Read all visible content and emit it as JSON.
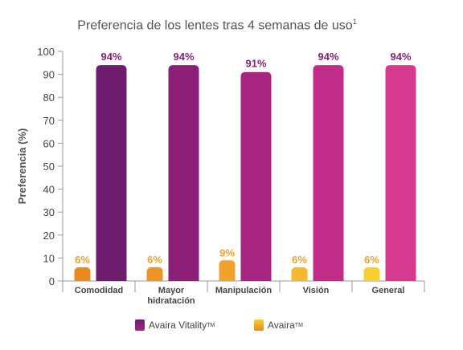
{
  "chart_data": {
    "type": "bar",
    "title": "Preferencia de los lentes tras 4 semanas de uso",
    "title_sup": "1",
    "ylabel": "Preferencia (%)",
    "xlabel": "",
    "ylim": [
      0,
      100
    ],
    "yticks": [
      0,
      10,
      20,
      30,
      40,
      50,
      60,
      70,
      80,
      90,
      100
    ],
    "categories": [
      [
        "Comodidad"
      ],
      [
        "Mayor",
        "hidratación"
      ],
      [
        "Manipulación"
      ],
      [
        "Visión"
      ],
      [
        "General"
      ]
    ],
    "series": [
      {
        "name": "Avaira",
        "name_sup": "TM",
        "values": [
          6,
          6,
          9,
          6,
          6
        ],
        "labels": [
          "6%",
          "6%",
          "9%",
          "6%",
          "6%"
        ],
        "colors": [
          "#e88a1e",
          "#eb9423",
          "#f0a22a",
          "#f5b82e",
          "#f7cf2e"
        ]
      },
      {
        "name": "Avaira Vitality",
        "name_sup": "TM",
        "values": [
          94,
          94,
          91,
          94,
          94
        ],
        "labels": [
          "94%",
          "94%",
          "91%",
          "94%",
          "94%"
        ],
        "colors": [
          "#6e1c6e",
          "#8c2079",
          "#a72480",
          "#c12c88",
          "#d53a8f"
        ]
      }
    ],
    "label_colors": {
      "Avaira": "#f0a22a",
      "Avaira Vitality": "#8b1f76"
    },
    "grid": false,
    "legend_position": "bottom"
  }
}
